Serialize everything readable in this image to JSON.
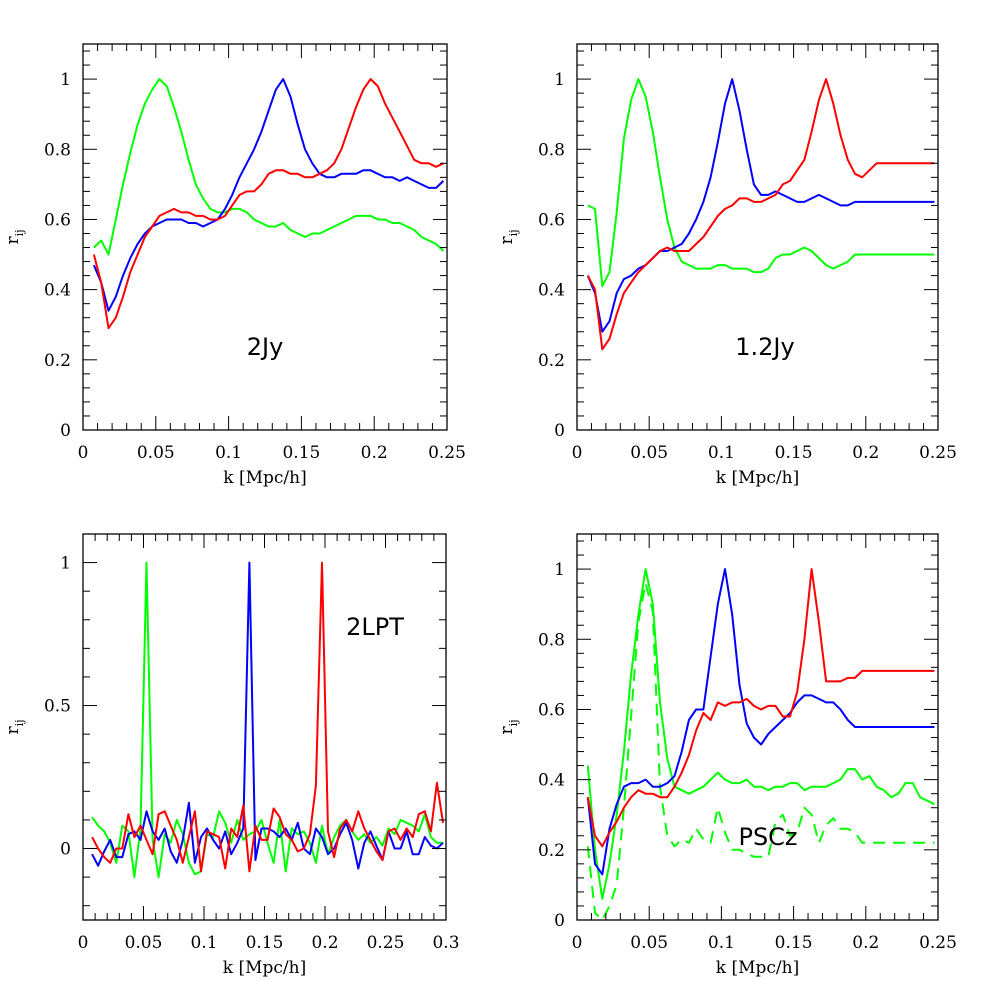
{
  "chart_data": [
    {
      "type": "line",
      "label": "2Jy",
      "xlabel": "k [Mpc/h]",
      "ylabel_main": "r",
      "ylabel_sub": "ij",
      "xlim": [
        0,
        0.25
      ],
      "ylim": [
        0,
        1.1
      ],
      "xticks": [
        0,
        0.05,
        0.1,
        0.15,
        0.2,
        0.25
      ],
      "xtick_labels": [
        "0",
        "0.05",
        "0.1",
        "0.15",
        "0.2",
        "0.25"
      ],
      "yticks": [
        0,
        0.2,
        0.4,
        0.6,
        0.8,
        1
      ],
      "ytick_labels": [
        "0",
        "0.2",
        "0.4",
        "0.6",
        "0.8",
        "1"
      ],
      "x": [
        0.0075,
        0.0125,
        0.0175,
        0.0225,
        0.0275,
        0.0325,
        0.0375,
        0.0425,
        0.0475,
        0.0525,
        0.0575,
        0.0625,
        0.0675,
        0.0725,
        0.0775,
        0.0825,
        0.0875,
        0.0925,
        0.0975,
        0.1025,
        0.1075,
        0.1125,
        0.1175,
        0.1225,
        0.1275,
        0.1325,
        0.1375,
        0.1425,
        0.1475,
        0.1525,
        0.1575,
        0.1625,
        0.1675,
        0.1725,
        0.1775,
        0.1825,
        0.1875,
        0.1925,
        0.1975,
        0.2025,
        0.2075,
        0.2125,
        0.2175,
        0.2225,
        0.2275,
        0.2325,
        0.2375,
        0.2425,
        0.2475
      ],
      "series": [
        {
          "color": "#00ff00",
          "dashed": false,
          "values": [
            0.52,
            0.54,
            0.5,
            0.6,
            0.7,
            0.79,
            0.87,
            0.93,
            0.97,
            1.0,
            0.98,
            0.92,
            0.85,
            0.77,
            0.7,
            0.66,
            0.63,
            0.62,
            0.62,
            0.63,
            0.63,
            0.62,
            0.6,
            0.59,
            0.58,
            0.58,
            0.59,
            0.57,
            0.56,
            0.55,
            0.56,
            0.56,
            0.57,
            0.58,
            0.59,
            0.6,
            0.61,
            0.61,
            0.61,
            0.6,
            0.6,
            0.59,
            0.59,
            0.58,
            0.57,
            0.55,
            0.54,
            0.53,
            0.51
          ]
        },
        {
          "color": "#0000ff",
          "dashed": false,
          "values": [
            0.47,
            0.42,
            0.34,
            0.38,
            0.44,
            0.49,
            0.53,
            0.56,
            0.58,
            0.59,
            0.6,
            0.6,
            0.6,
            0.59,
            0.59,
            0.58,
            0.59,
            0.6,
            0.63,
            0.67,
            0.72,
            0.76,
            0.8,
            0.85,
            0.91,
            0.97,
            1.0,
            0.95,
            0.87,
            0.8,
            0.76,
            0.73,
            0.72,
            0.72,
            0.73,
            0.73,
            0.73,
            0.74,
            0.74,
            0.73,
            0.72,
            0.72,
            0.71,
            0.72,
            0.71,
            0.7,
            0.69,
            0.69,
            0.71
          ]
        },
        {
          "color": "#ff0000",
          "dashed": false,
          "values": [
            0.5,
            0.42,
            0.29,
            0.32,
            0.38,
            0.45,
            0.5,
            0.55,
            0.58,
            0.61,
            0.62,
            0.63,
            0.62,
            0.62,
            0.61,
            0.61,
            0.6,
            0.6,
            0.61,
            0.64,
            0.67,
            0.68,
            0.68,
            0.7,
            0.73,
            0.74,
            0.74,
            0.73,
            0.73,
            0.72,
            0.72,
            0.73,
            0.74,
            0.76,
            0.8,
            0.86,
            0.92,
            0.97,
            1.0,
            0.98,
            0.93,
            0.89,
            0.85,
            0.81,
            0.77,
            0.76,
            0.76,
            0.75,
            0.76
          ]
        }
      ]
    },
    {
      "type": "line",
      "label": "1.2Jy",
      "xlabel": "k [Mpc/h]",
      "ylabel_main": "r",
      "ylabel_sub": "ij",
      "xlim": [
        0,
        0.25
      ],
      "ylim": [
        0,
        1.1
      ],
      "xticks": [
        0,
        0.05,
        0.1,
        0.15,
        0.2,
        0.25
      ],
      "xtick_labels": [
        "0",
        "0.05",
        "0.1",
        "0.15",
        "0.2",
        "0.25"
      ],
      "yticks": [
        0,
        0.2,
        0.4,
        0.6,
        0.8,
        1
      ],
      "ytick_labels": [
        "0",
        "0.2",
        "0.4",
        "0.6",
        "0.8",
        "1"
      ],
      "x": [
        0.0075,
        0.0125,
        0.0175,
        0.0225,
        0.0275,
        0.0325,
        0.0375,
        0.0425,
        0.0475,
        0.0525,
        0.0575,
        0.0625,
        0.0675,
        0.0725,
        0.0775,
        0.0825,
        0.0875,
        0.0925,
        0.0975,
        0.1025,
        0.1075,
        0.1125,
        0.1175,
        0.1225,
        0.1275,
        0.1325,
        0.1375,
        0.1425,
        0.1475,
        0.1525,
        0.1575,
        0.1625,
        0.1675,
        0.1725,
        0.1775,
        0.1825,
        0.1875,
        0.1925,
        0.1975,
        0.2025,
        0.2075,
        0.2125,
        0.2175,
        0.2225,
        0.2275,
        0.2325,
        0.2375,
        0.2425,
        0.2475
      ],
      "series": [
        {
          "color": "#00ff00",
          "dashed": false,
          "values": [
            0.64,
            0.63,
            0.41,
            0.45,
            0.62,
            0.83,
            0.94,
            1.0,
            0.95,
            0.85,
            0.72,
            0.6,
            0.52,
            0.48,
            0.47,
            0.46,
            0.46,
            0.46,
            0.47,
            0.47,
            0.46,
            0.46,
            0.46,
            0.45,
            0.45,
            0.46,
            0.49,
            0.5,
            0.5,
            0.51,
            0.52,
            0.51,
            0.49,
            0.47,
            0.46,
            0.47,
            0.48,
            0.5,
            0.5,
            0.5,
            0.5,
            0.5,
            0.5,
            0.5,
            0.5,
            0.5,
            0.5,
            0.5,
            0.5
          ]
        },
        {
          "color": "#0000ff",
          "dashed": false,
          "values": [
            0.44,
            0.39,
            0.28,
            0.31,
            0.39,
            0.43,
            0.44,
            0.46,
            0.47,
            0.49,
            0.51,
            0.51,
            0.52,
            0.53,
            0.56,
            0.6,
            0.65,
            0.72,
            0.82,
            0.93,
            1.0,
            0.91,
            0.8,
            0.7,
            0.67,
            0.67,
            0.68,
            0.67,
            0.66,
            0.65,
            0.65,
            0.66,
            0.67,
            0.66,
            0.65,
            0.64,
            0.64,
            0.65,
            0.65,
            0.65,
            0.65,
            0.65,
            0.65,
            0.65,
            0.65,
            0.65,
            0.65,
            0.65,
            0.65
          ]
        },
        {
          "color": "#ff0000",
          "dashed": false,
          "values": [
            0.44,
            0.4,
            0.23,
            0.26,
            0.33,
            0.39,
            0.42,
            0.45,
            0.47,
            0.49,
            0.51,
            0.52,
            0.51,
            0.51,
            0.51,
            0.53,
            0.55,
            0.58,
            0.61,
            0.63,
            0.64,
            0.66,
            0.66,
            0.65,
            0.65,
            0.66,
            0.67,
            0.7,
            0.71,
            0.74,
            0.77,
            0.85,
            0.94,
            1.0,
            0.93,
            0.84,
            0.77,
            0.73,
            0.72,
            0.74,
            0.76,
            0.76,
            0.76,
            0.76,
            0.76,
            0.76,
            0.76,
            0.76,
            0.76
          ]
        }
      ]
    },
    {
      "type": "line",
      "label": "2LPT",
      "xlabel": "k [Mpc/h]",
      "ylabel_main": "r",
      "ylabel_sub": "ij",
      "xlim": [
        0,
        0.3
      ],
      "ylim": [
        -0.25,
        1.1
      ],
      "xticks": [
        0,
        0.05,
        0.1,
        0.15,
        0.2,
        0.25,
        0.3
      ],
      "xtick_labels": [
        "0",
        "0.05",
        "0.1",
        "0.15",
        "0.2",
        "0.25",
        "0.3"
      ],
      "yticks": [
        0,
        0.5,
        1
      ],
      "ytick_labels": [
        "0",
        "0.5",
        "1"
      ],
      "x": [
        0.0075,
        0.0125,
        0.0175,
        0.0225,
        0.0275,
        0.0325,
        0.0375,
        0.0425,
        0.0475,
        0.0525,
        0.0575,
        0.0625,
        0.0675,
        0.0725,
        0.0775,
        0.0825,
        0.0875,
        0.0925,
        0.0975,
        0.1025,
        0.1075,
        0.1125,
        0.1175,
        0.1225,
        0.1275,
        0.1325,
        0.1375,
        0.1425,
        0.1475,
        0.1525,
        0.1575,
        0.1625,
        0.1675,
        0.1725,
        0.1775,
        0.1825,
        0.1875,
        0.1925,
        0.1975,
        0.2025,
        0.2075,
        0.2125,
        0.2175,
        0.2225,
        0.2275,
        0.2325,
        0.2375,
        0.2425,
        0.2475,
        0.2525,
        0.2575,
        0.2625,
        0.2675,
        0.2725,
        0.2775,
        0.2825,
        0.2875,
        0.2925,
        0.2975
      ],
      "series": [
        {
          "color": "#00ff00",
          "dashed": false,
          "values": [
            0.11,
            0.08,
            0.06,
            0.02,
            -0.05,
            0.08,
            0.06,
            -0.1,
            0.07,
            1.0,
            0.03,
            -0.1,
            0.05,
            0.02,
            0.1,
            0.05,
            -0.05,
            -0.09,
            -0.08,
            0.05,
            0.04,
            0.13,
            0.09,
            0.02,
            0.1,
            0.03,
            0.05,
            0.06,
            0.1,
            0.02,
            -0.05,
            0.1,
            -0.08,
            0.07,
            0.05,
            0.06,
            0.02,
            -0.05,
            0.08,
            -0.02,
            0.04,
            0.08,
            0.1,
            0.06,
            0.03,
            0.05,
            0.02,
            0.04,
            0.01,
            0.07,
            0.05,
            0.1,
            0.09,
            0.08,
            0.06,
            0.12,
            0.04,
            0.02,
            0.02
          ]
        },
        {
          "color": "#0000ff",
          "dashed": false,
          "values": [
            -0.02,
            -0.06,
            -0.01,
            0.03,
            -0.03,
            -0.03,
            0.05,
            0.06,
            0.03,
            0.13,
            0.06,
            0.03,
            0.07,
            -0.01,
            -0.05,
            0.03,
            0.16,
            -0.05,
            0.04,
            0.07,
            0.03,
            0.0,
            0.06,
            -0.02,
            0.02,
            0.07,
            1.0,
            -0.04,
            0.07,
            0.07,
            0.06,
            0.04,
            0.07,
            0.03,
            0.09,
            0.0,
            -0.02,
            0.07,
            0.04,
            -0.02,
            0.0,
            0.05,
            0.09,
            0.03,
            -0.07,
            0.02,
            0.06,
            0.01,
            -0.04,
            0.06,
            0.0,
            0.0,
            0.06,
            -0.02,
            -0.02,
            0.04,
            0.01,
            0.0,
            0.02
          ]
        },
        {
          "color": "#ff0000",
          "dashed": false,
          "values": [
            0.04,
            0.0,
            -0.03,
            -0.05,
            0.0,
            0.0,
            0.12,
            0.04,
            0.08,
            0.03,
            -0.02,
            0.12,
            0.13,
            0.08,
            0.03,
            -0.05,
            0.04,
            0.13,
            -0.08,
            0.06,
            0.05,
            0.04,
            -0.07,
            0.07,
            0.04,
            0.15,
            -0.08,
            0.08,
            0.03,
            0.03,
            0.14,
            0.11,
            0.05,
            0.03,
            -0.01,
            0.0,
            0.05,
            0.22,
            1.0,
            0.06,
            -0.03,
            0.07,
            0.1,
            0.06,
            0.13,
            0.07,
            0.03,
            -0.01,
            -0.04,
            0.06,
            0.07,
            0.03,
            0.07,
            0.04,
            0.12,
            0.13,
            0.06,
            0.23,
            0.09
          ]
        }
      ]
    },
    {
      "type": "line",
      "label": "PSCz",
      "xlabel": "k [Mpc/h]",
      "ylabel_main": "r",
      "ylabel_sub": "ij",
      "xlim": [
        0,
        0.25
      ],
      "ylim": [
        0,
        1.1
      ],
      "xticks": [
        0,
        0.05,
        0.1,
        0.15,
        0.2,
        0.25
      ],
      "xtick_labels": [
        "0",
        "0.05",
        "0.1",
        "0.15",
        "0.2",
        "0.25"
      ],
      "yticks": [
        0,
        0.2,
        0.4,
        0.6,
        0.8,
        1
      ],
      "ytick_labels": [
        "0",
        "0.2",
        "0.4",
        "0.6",
        "0.8",
        "1"
      ],
      "x": [
        0.0075,
        0.0125,
        0.0175,
        0.0225,
        0.0275,
        0.0325,
        0.0375,
        0.0425,
        0.0475,
        0.0525,
        0.0575,
        0.0625,
        0.0675,
        0.0725,
        0.0775,
        0.0825,
        0.0875,
        0.0925,
        0.0975,
        0.1025,
        0.1075,
        0.1125,
        0.1175,
        0.1225,
        0.1275,
        0.1325,
        0.1375,
        0.1425,
        0.1475,
        0.1525,
        0.1575,
        0.1625,
        0.1675,
        0.1725,
        0.1775,
        0.1825,
        0.1875,
        0.1925,
        0.1975,
        0.2025,
        0.2075,
        0.2125,
        0.2175,
        0.2225,
        0.2275,
        0.2325,
        0.2375,
        0.2425,
        0.2475
      ],
      "series": [
        {
          "color": "#00ff00",
          "dashed": false,
          "values": [
            0.44,
            0.2,
            0.06,
            0.16,
            0.3,
            0.48,
            0.7,
            0.87,
            1.0,
            0.9,
            0.62,
            0.46,
            0.38,
            0.37,
            0.36,
            0.37,
            0.38,
            0.4,
            0.42,
            0.4,
            0.39,
            0.39,
            0.4,
            0.38,
            0.38,
            0.37,
            0.38,
            0.38,
            0.39,
            0.39,
            0.37,
            0.38,
            0.38,
            0.38,
            0.39,
            0.4,
            0.43,
            0.43,
            0.4,
            0.41,
            0.38,
            0.37,
            0.35,
            0.36,
            0.39,
            0.39,
            0.35,
            0.34,
            0.33
          ]
        },
        {
          "color": "#00ff00",
          "dashed": true,
          "values": [
            0.21,
            0.02,
            0.0,
            0.04,
            0.1,
            0.32,
            0.58,
            0.85,
            0.96,
            0.88,
            0.38,
            0.24,
            0.21,
            0.23,
            0.22,
            0.26,
            0.23,
            0.22,
            0.32,
            0.25,
            0.2,
            0.2,
            0.19,
            0.18,
            0.18,
            0.18,
            0.28,
            0.3,
            0.24,
            0.25,
            0.32,
            0.3,
            0.22,
            0.27,
            0.29,
            0.26,
            0.26,
            0.25,
            0.22,
            0.22,
            0.22,
            0.22,
            0.22,
            0.22,
            0.22,
            0.22,
            0.22,
            0.22,
            0.22
          ]
        },
        {
          "color": "#0000ff",
          "dashed": false,
          "values": [
            0.35,
            0.16,
            0.13,
            0.26,
            0.33,
            0.38,
            0.39,
            0.39,
            0.4,
            0.38,
            0.38,
            0.39,
            0.41,
            0.48,
            0.57,
            0.6,
            0.6,
            0.75,
            0.9,
            1.0,
            0.87,
            0.67,
            0.56,
            0.52,
            0.5,
            0.53,
            0.55,
            0.57,
            0.59,
            0.62,
            0.64,
            0.64,
            0.63,
            0.62,
            0.62,
            0.6,
            0.57,
            0.55,
            0.55,
            0.55,
            0.55,
            0.55,
            0.55,
            0.55,
            0.55,
            0.55,
            0.55,
            0.55,
            0.55
          ]
        },
        {
          "color": "#ff0000",
          "dashed": false,
          "values": [
            0.35,
            0.24,
            0.21,
            0.25,
            0.28,
            0.32,
            0.35,
            0.37,
            0.36,
            0.36,
            0.35,
            0.35,
            0.38,
            0.42,
            0.47,
            0.54,
            0.59,
            0.57,
            0.62,
            0.61,
            0.62,
            0.62,
            0.63,
            0.61,
            0.6,
            0.61,
            0.61,
            0.58,
            0.58,
            0.65,
            0.8,
            1.0,
            0.85,
            0.68,
            0.68,
            0.68,
            0.69,
            0.69,
            0.71,
            0.71,
            0.71,
            0.71,
            0.71,
            0.71,
            0.71,
            0.71,
            0.71,
            0.71,
            0.71
          ]
        }
      ]
    }
  ]
}
